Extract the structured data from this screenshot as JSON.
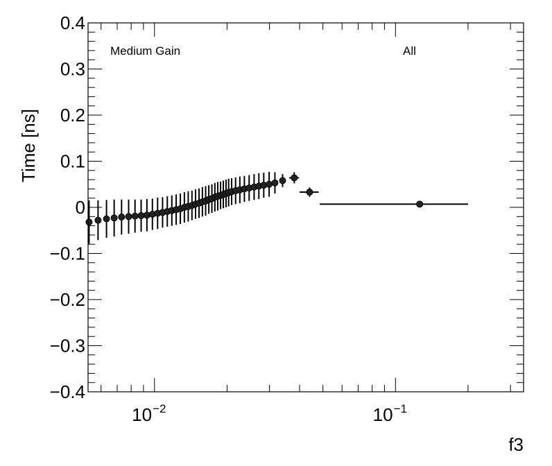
{
  "chart_data": {
    "type": "scatter",
    "xlabel": "f3",
    "ylabel": "Time [ns]",
    "xscale": "log",
    "xlim": [
      0.0053,
      0.34
    ],
    "ylim": [
      -0.4,
      0.4
    ],
    "grid": false,
    "annotations": [
      "Medium Gain",
      "All"
    ],
    "y_ticks": [
      {
        "value": -0.4,
        "label": "−0.4"
      },
      {
        "value": -0.3,
        "label": "−0.3"
      },
      {
        "value": -0.2,
        "label": "−0.2"
      },
      {
        "value": -0.1,
        "label": "−0.1"
      },
      {
        "value": 0,
        "label": "0"
      },
      {
        "value": 0.1,
        "label": "0.1"
      },
      {
        "value": 0.2,
        "label": "0.2"
      },
      {
        "value": 0.3,
        "label": "0.3"
      },
      {
        "value": 0.4,
        "label": "0.4"
      }
    ],
    "x_ticks": [
      {
        "value": 0.01,
        "base": "10",
        "exp": "−2"
      },
      {
        "value": 0.1,
        "base": "10",
        "exp": "−1"
      }
    ],
    "series": [
      {
        "points": [
          {
            "x": 0.00535,
            "y": -0.032,
            "xerr": 0.00015,
            "yerr": 0.047
          },
          {
            "x": 0.00583,
            "y": -0.028,
            "xerr": 0.00017,
            "yerr": 0.043
          },
          {
            "x": 0.00632,
            "y": -0.025,
            "xerr": 0.00018,
            "yerr": 0.041
          },
          {
            "x": 0.0068,
            "y": -0.023,
            "xerr": 0.00017,
            "yerr": 0.04
          },
          {
            "x": 0.0073,
            "y": -0.021,
            "xerr": 0.00018,
            "yerr": 0.038
          },
          {
            "x": 0.00781,
            "y": -0.02,
            "xerr": 0.00018,
            "yerr": 0.037
          },
          {
            "x": 0.0083,
            "y": -0.019,
            "xerr": 0.00018,
            "yerr": 0.036
          },
          {
            "x": 0.0088,
            "y": -0.018,
            "xerr": 0.00019,
            "yerr": 0.035
          },
          {
            "x": 0.0093,
            "y": -0.017,
            "xerr": 0.00019,
            "yerr": 0.035
          },
          {
            "x": 0.0098,
            "y": -0.015,
            "xerr": 0.00019,
            "yerr": 0.034
          },
          {
            "x": 0.0103,
            "y": -0.013,
            "xerr": 0.00019,
            "yerr": 0.034
          },
          {
            "x": 0.0108,
            "y": -0.011,
            "xerr": 0.0002,
            "yerr": 0.033
          },
          {
            "x": 0.0113,
            "y": -0.009,
            "xerr": 0.0002,
            "yerr": 0.033
          },
          {
            "x": 0.0118,
            "y": -0.007,
            "xerr": 0.0002,
            "yerr": 0.033
          },
          {
            "x": 0.0123,
            "y": -0.005,
            "xerr": 0.0002,
            "yerr": 0.033
          },
          {
            "x": 0.0128,
            "y": -0.003,
            "xerr": 0.0002,
            "yerr": 0.033
          },
          {
            "x": 0.0133,
            "y": 0.0,
            "xerr": 0.00021,
            "yerr": 0.033
          },
          {
            "x": 0.0138,
            "y": 0.002,
            "xerr": 0.00021,
            "yerr": 0.033
          },
          {
            "x": 0.0143,
            "y": 0.004,
            "xerr": 0.00021,
            "yerr": 0.032
          },
          {
            "x": 0.0148,
            "y": 0.007,
            "xerr": 0.00022,
            "yerr": 0.032
          },
          {
            "x": 0.0153,
            "y": 0.009,
            "xerr": 0.00022,
            "yerr": 0.032
          },
          {
            "x": 0.0158,
            "y": 0.012,
            "xerr": 0.00022,
            "yerr": 0.032
          },
          {
            "x": 0.0163,
            "y": 0.014,
            "xerr": 0.00022,
            "yerr": 0.032
          },
          {
            "x": 0.0168,
            "y": 0.017,
            "xerr": 0.00022,
            "yerr": 0.031
          },
          {
            "x": 0.0173,
            "y": 0.019,
            "xerr": 0.00023,
            "yerr": 0.031
          },
          {
            "x": 0.0178,
            "y": 0.022,
            "xerr": 0.00023,
            "yerr": 0.031
          },
          {
            "x": 0.0183,
            "y": 0.024,
            "xerr": 0.00023,
            "yerr": 0.031
          },
          {
            "x": 0.0188,
            "y": 0.026,
            "xerr": 0.00023,
            "yerr": 0.03
          },
          {
            "x": 0.0193,
            "y": 0.028,
            "xerr": 0.00023,
            "yerr": 0.03
          },
          {
            "x": 0.0198,
            "y": 0.03,
            "xerr": 0.00023,
            "yerr": 0.03
          },
          {
            "x": 0.0203,
            "y": 0.032,
            "xerr": 0.00024,
            "yerr": 0.03
          },
          {
            "x": 0.0209,
            "y": 0.034,
            "xerr": 0.00026,
            "yerr": 0.029
          },
          {
            "x": 0.0217,
            "y": 0.036,
            "xerr": 0.0003,
            "yerr": 0.029
          },
          {
            "x": 0.0226,
            "y": 0.038,
            "xerr": 0.00035,
            "yerr": 0.029
          },
          {
            "x": 0.0236,
            "y": 0.04,
            "xerr": 0.0004,
            "yerr": 0.028
          },
          {
            "x": 0.0247,
            "y": 0.042,
            "xerr": 0.00045,
            "yerr": 0.028
          },
          {
            "x": 0.0259,
            "y": 0.044,
            "xerr": 0.0005,
            "yerr": 0.028
          },
          {
            "x": 0.0271,
            "y": 0.046,
            "xerr": 0.00055,
            "yerr": 0.028
          },
          {
            "x": 0.0284,
            "y": 0.048,
            "xerr": 0.0006,
            "yerr": 0.027
          },
          {
            "x": 0.0299,
            "y": 0.05,
            "xerr": 0.0007,
            "yerr": 0.027
          },
          {
            "x": 0.0316,
            "y": 0.053,
            "xerr": 0.0008,
            "yerr": 0.023
          },
          {
            "x": 0.034,
            "y": 0.058,
            "xerr": 0.001,
            "yerr": 0.014
          },
          {
            "x": 0.038,
            "y": 0.064,
            "xerr": 0.0018,
            "yerr": 0.012
          },
          {
            "x": 0.044,
            "y": 0.033,
            "xerr": 0.004,
            "yerr": 0.01
          },
          {
            "x": 0.126,
            "y": 0.007,
            "xerr_low": 0.0775,
            "xerr_high": 0.074,
            "yerr": 0.005
          }
        ]
      }
    ]
  }
}
